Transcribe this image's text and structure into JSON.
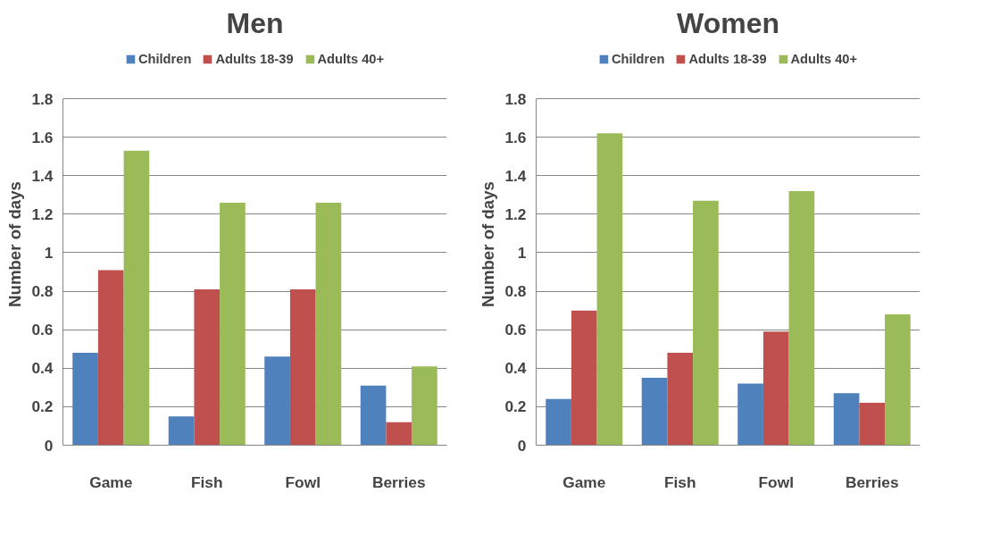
{
  "chart_data": [
    {
      "type": "bar",
      "title": "Men",
      "ylabel": "Number of days",
      "categories": [
        "Game",
        "Fish",
        "Fowl",
        "Berries"
      ],
      "series": [
        {
          "name": "Children",
          "color": "#4f81bd",
          "values": [
            0.48,
            0.15,
            0.46,
            0.31
          ]
        },
        {
          "name": "Adults 18-39",
          "color": "#c0504d",
          "values": [
            0.91,
            0.81,
            0.81,
            0.12
          ]
        },
        {
          "name": "Adults 40+",
          "color": "#9bbb59",
          "values": [
            1.53,
            1.26,
            1.26,
            0.41
          ]
        }
      ],
      "ylim": [
        0,
        1.8
      ],
      "yticks": [
        0,
        0.2,
        0.4,
        0.6,
        0.8,
        1,
        1.2,
        1.4,
        1.6,
        1.8
      ],
      "grid": "y",
      "legend": "top"
    },
    {
      "type": "bar",
      "title": "Women",
      "ylabel": "Number of days",
      "categories": [
        "Game",
        "Fish",
        "Fowl",
        "Berries"
      ],
      "series": [
        {
          "name": "Children",
          "color": "#4f81bd",
          "values": [
            0.24,
            0.35,
            0.32,
            0.27
          ]
        },
        {
          "name": "Adults 18-39",
          "color": "#c0504d",
          "values": [
            0.7,
            0.48,
            0.59,
            0.22
          ]
        },
        {
          "name": "Adults 40+",
          "color": "#9bbb59",
          "values": [
            1.62,
            1.27,
            1.32,
            0.68
          ]
        }
      ],
      "ylim": [
        0,
        1.8
      ],
      "yticks": [
        0,
        0.2,
        0.4,
        0.6,
        0.8,
        1,
        1.2,
        1.4,
        1.6,
        1.8
      ],
      "grid": "y",
      "legend": "top"
    }
  ]
}
